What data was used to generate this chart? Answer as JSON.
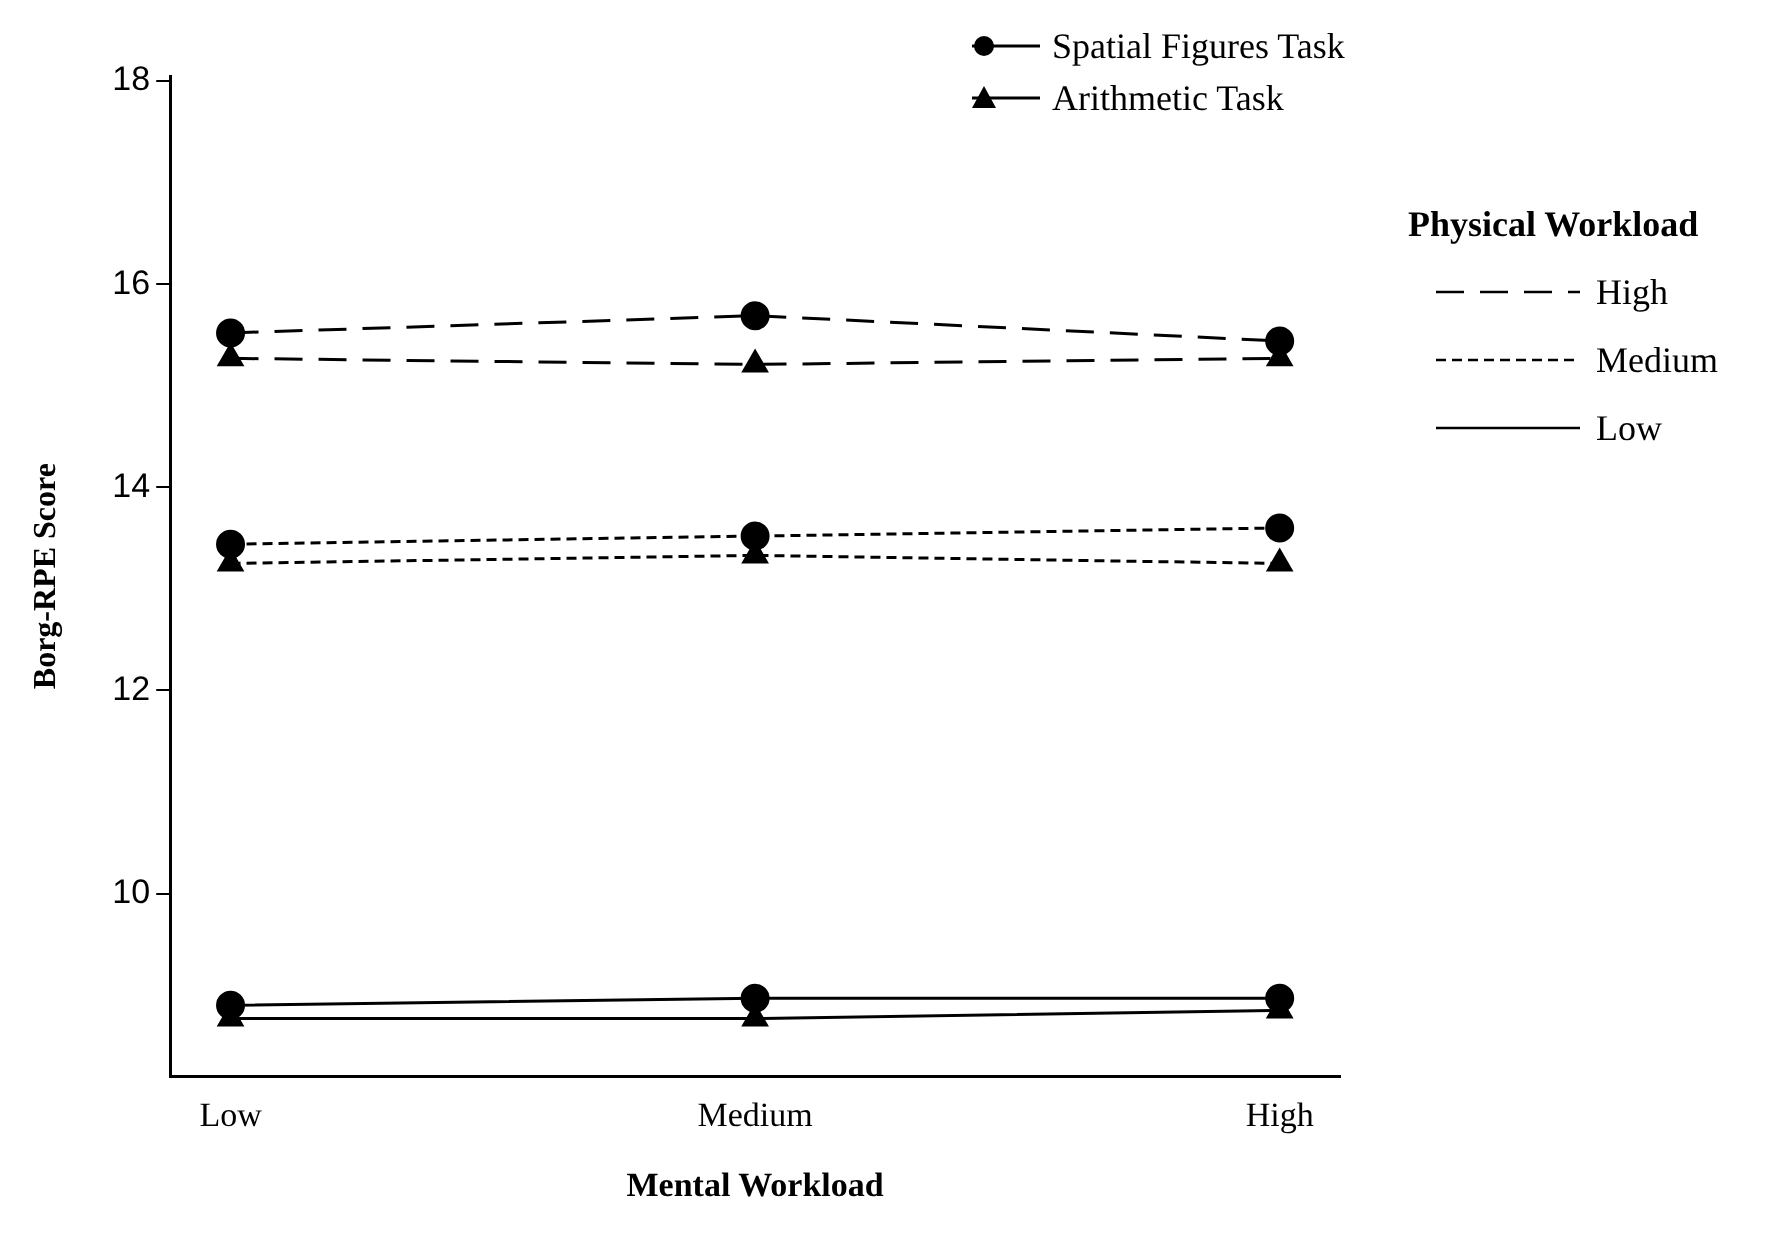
{
  "chart_data": {
    "type": "line",
    "xlabel": "Mental Workload",
    "ylabel": "Borg-RPE Score",
    "legend_title": "Physical Workload",
    "categories": [
      "Low",
      "Medium",
      "High"
    ],
    "ylim": [
      8.2,
      18.05
    ],
    "yticks": [
      10,
      12,
      14,
      16,
      18
    ],
    "grid": false,
    "annotations": [
      "Spatial Figures Task",
      "Arithmetic Task",
      "High",
      "Medium",
      "Low"
    ],
    "series": [
      {
        "color": "#000000",
        "marker": "circle",
        "line_style": "dashed",
        "values": [
          15.52,
          15.69,
          15.44
        ]
      },
      {
        "color": "#000000",
        "marker": "triangle",
        "line_style": "dashed",
        "values": [
          15.27,
          15.21,
          15.27
        ]
      },
      {
        "color": "#000000",
        "marker": "circle",
        "line_style": "dotted",
        "values": [
          13.44,
          13.52,
          13.6
        ]
      },
      {
        "color": "#000000",
        "marker": "triangle",
        "line_style": "dotted",
        "values": [
          13.25,
          13.33,
          13.25
        ]
      },
      {
        "color": "#000000",
        "marker": "circle",
        "line_style": "solid",
        "values": [
          8.9,
          8.97,
          8.97
        ]
      },
      {
        "color": "#000000",
        "marker": "triangle",
        "line_style": "solid",
        "values": [
          8.77,
          8.77,
          8.85
        ]
      }
    ]
  }
}
